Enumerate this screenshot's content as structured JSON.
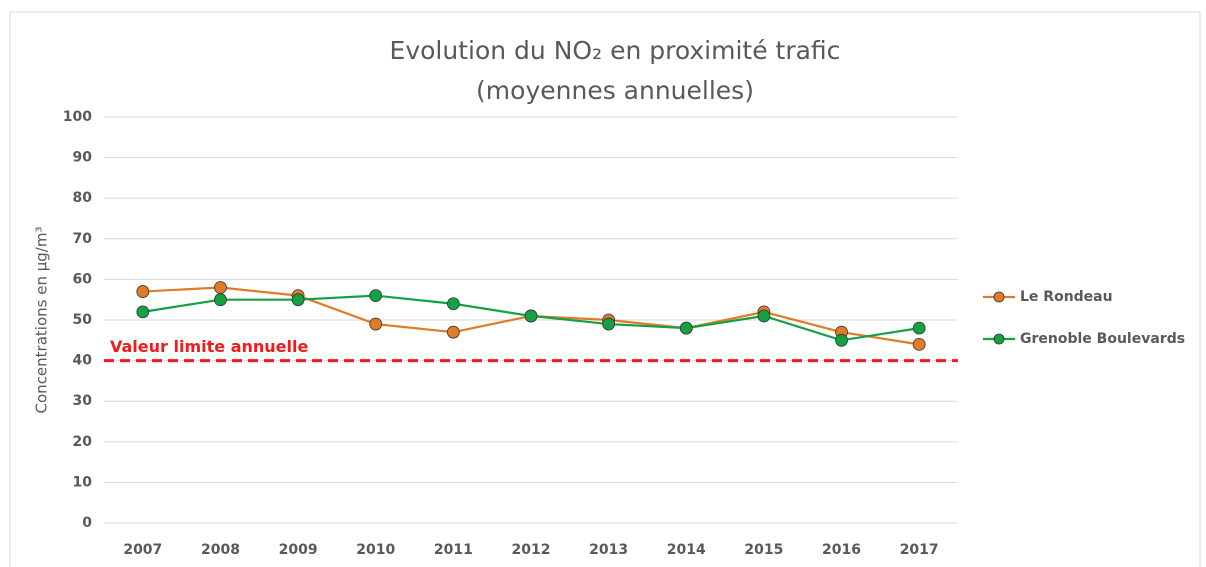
{
  "chart_data": {
    "type": "line",
    "title": [
      "Evolution du NO₂ en proximité trafic",
      "(moyennes annuelles)"
    ],
    "y_label": "Concentrations en µg/m³",
    "categories": [
      "2007",
      "2008",
      "2009",
      "2010",
      "2011",
      "2012",
      "2013",
      "2014",
      "2015",
      "2016",
      "2017"
    ],
    "series": [
      {
        "name": "Le Rondeau",
        "color": "#e07b28",
        "values": [
          57,
          58,
          56,
          49,
          47,
          51,
          50,
          48,
          52,
          47,
          44
        ]
      },
      {
        "name": "Grenoble Boulevards",
        "color": "#15a043",
        "values": [
          52,
          55,
          55,
          56,
          54,
          51,
          49,
          48,
          51,
          45,
          48
        ]
      }
    ],
    "annotations": [
      {
        "text": "Valeur limite annuelle",
        "value": 40,
        "color": "#ee1c1c"
      }
    ],
    "ylim": [
      0,
      100
    ],
    "yticks": [
      0,
      10,
      20,
      30,
      40,
      50,
      60,
      70,
      80,
      90,
      100
    ],
    "grid": true,
    "legend": "right"
  }
}
